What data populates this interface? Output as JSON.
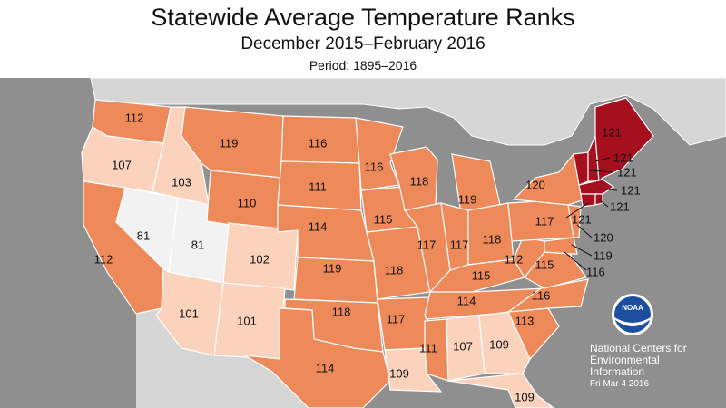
{
  "header": {
    "title": "Statewide Average Temperature Ranks",
    "subtitle": "December 2015–February 2016",
    "period": "Period: 1895–2016"
  },
  "colors": {
    "rank_81": "#f2f2f2",
    "rank_100_109": "#fbd3bc",
    "rank_110_119": "#ee8a5a",
    "rank_120_121": "#a50f1e",
    "ocean": "#8f8f8f",
    "land_outside": "#d6d6d6",
    "state_border": "#ffffff"
  },
  "states": {
    "WA": "112",
    "OR": "107",
    "ID": "103",
    "MT": "119",
    "ND": "116",
    "MN": "116",
    "WI": "118",
    "MI": "119",
    "NY": "120",
    "ME": "121",
    "WY": "110",
    "SD": "111",
    "NV": "81",
    "UT": "81",
    "CO": "102",
    "NE": "114",
    "IA": "115",
    "CA": "112",
    "KS": "119",
    "MO": "118",
    "IL": "117",
    "IN": "117",
    "OH": "118",
    "PA": "117",
    "WV": "112",
    "KY": "115",
    "VA": "115",
    "AZ": "101",
    "NM": "101",
    "OK": "118",
    "AR": "117",
    "TN": "114",
    "NC": "116",
    "SC": "113",
    "TX": "114",
    "LA": "109",
    "MS": "111",
    "AL": "107",
    "GA": "109",
    "FL": "109"
  },
  "northeast": {
    "NH": "121",
    "VT": "121",
    "MA": "121",
    "RI": "121",
    "CT": "121",
    "NJ": "120",
    "DE": "119",
    "MD": "116"
  },
  "credits": {
    "logo_text": "NOAA",
    "org_line1": "National Centers for",
    "org_line2": "Environmental",
    "org_line3": "Information",
    "date": "Fri Mar  4 2016"
  }
}
